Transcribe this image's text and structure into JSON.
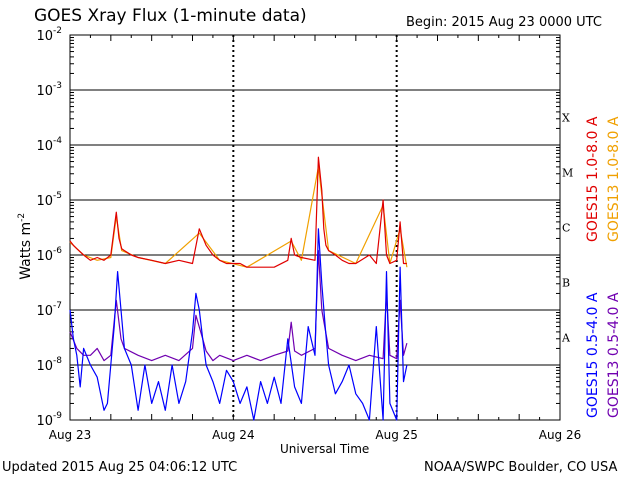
{
  "header": {
    "title": "GOES Xray Flux (1-minute data)",
    "begin": "Begin:  2015 Aug 23 0000 UTC"
  },
  "footer": {
    "updated": "Updated 2015 Aug 25 04:06:12 UTC",
    "credit": "NOAA/SWPC Boulder, CO USA"
  },
  "colors": {
    "goes15_long": "#e00000",
    "goes13_long": "#f0a000",
    "goes15_short": "#0000ff",
    "goes13_short": "#7000b0"
  },
  "chart_data": {
    "type": "line",
    "title": "GOES Xray Flux (1-minute data)",
    "xlabel": "Universal Time",
    "ylabel": "Watts m",
    "ylabel_sup": "-2",
    "yscale": "log",
    "ylim": [
      1e-09,
      0.01
    ],
    "xlim": [
      0,
      72
    ],
    "x_unit": "hours since 2015 Aug 23 0000 UTC",
    "x_ticks": [
      {
        "x": 0,
        "label": "Aug 23"
      },
      {
        "x": 24,
        "label": "Aug 24"
      },
      {
        "x": 48,
        "label": "Aug 25"
      },
      {
        "x": 72,
        "label": "Aug 26"
      }
    ],
    "y_ticks": [
      {
        "exp": -9,
        "label": "10"
      },
      {
        "exp": -8,
        "label": "10"
      },
      {
        "exp": -7,
        "label": "10"
      },
      {
        "exp": -6,
        "label": "10"
      },
      {
        "exp": -5,
        "label": "10"
      },
      {
        "exp": -4,
        "label": "10"
      },
      {
        "exp": -3,
        "label": "10"
      },
      {
        "exp": -2,
        "label": "10"
      }
    ],
    "flare_classes": [
      {
        "label": "A",
        "exp": -7.5
      },
      {
        "label": "B",
        "exp": -6.5
      },
      {
        "label": "C",
        "exp": -5.5
      },
      {
        "label": "M",
        "exp": -4.5
      },
      {
        "label": "X",
        "exp": -3.5
      }
    ],
    "grid": true,
    "legend_position": "right",
    "series": [
      {
        "name": "GOES15 1.0-8.0 A",
        "color_key": "goes15_long",
        "x": [
          0,
          0.5,
          1,
          2,
          3,
          4,
          5,
          6,
          6.8,
          7.2,
          7.6,
          8,
          9,
          10,
          12,
          14,
          16,
          18,
          19,
          20,
          21,
          22,
          23,
          24,
          25,
          26,
          28,
          30,
          32,
          32.5,
          33,
          34,
          36,
          36.5,
          37,
          37.3,
          37.6,
          38,
          39,
          40,
          41,
          42,
          44,
          45,
          46,
          46.5,
          47,
          48,
          48.5,
          49,
          49.5
        ],
        "y": [
          1.8e-06,
          1.5e-06,
          1.3e-06,
          1e-06,
          8e-07,
          9e-07,
          8e-07,
          1e-06,
          6e-06,
          2e-06,
          1.3e-06,
          1.2e-06,
          1e-06,
          9e-07,
          8e-07,
          7e-07,
          8e-07,
          7e-07,
          3e-06,
          1.5e-06,
          1e-06,
          8e-07,
          7e-07,
          7e-07,
          7e-07,
          6e-07,
          6e-07,
          6e-07,
          8e-07,
          2e-06,
          1e-06,
          9e-07,
          8e-07,
          6e-05,
          1.5e-05,
          3e-06,
          1.5e-06,
          1.2e-06,
          1e-06,
          8e-07,
          7e-07,
          7e-07,
          1e-06,
          7e-07,
          1e-05,
          1e-06,
          7e-07,
          8e-07,
          4e-06,
          7e-07,
          7e-07
        ]
      },
      {
        "name": "GOES13 1.0-8.0 A",
        "color_key": "goes13_long",
        "x": [
          0,
          2,
          4,
          6,
          6.8,
          7.6,
          10,
          14,
          19,
          22,
          26,
          32.5,
          34,
          36.5,
          38,
          42,
          46,
          47,
          48.5,
          49.5
        ],
        "y": [
          1.7e-06,
          1e-06,
          8e-07,
          9e-07,
          5e-06,
          1.2e-06,
          9e-07,
          7e-07,
          2.5e-06,
          8e-07,
          6e-07,
          1.8e-06,
          8e-07,
          4e-05,
          1.2e-06,
          7e-07,
          8e-06,
          7e-07,
          3e-06,
          6e-07
        ]
      },
      {
        "name": "GOES15 0.5-4.0 A",
        "color_key": "goes15_short",
        "x": [
          0,
          0.5,
          1,
          1.5,
          2,
          3,
          4,
          5,
          5.5,
          6,
          6.5,
          7,
          7.5,
          8,
          9,
          10,
          11,
          12,
          13,
          14,
          15,
          16,
          17,
          18,
          18.5,
          19,
          19.5,
          20,
          21,
          22,
          23,
          24,
          25,
          26,
          27,
          28,
          29,
          30,
          31,
          32,
          33,
          34,
          35,
          36,
          36.5,
          37,
          37.5,
          38,
          39,
          40,
          41,
          42,
          43,
          44,
          45,
          46,
          46.5,
          47,
          48,
          48.5,
          49,
          49.5
        ],
        "y": [
          1e-07,
          3e-08,
          1.5e-08,
          4e-09,
          2e-08,
          1e-08,
          6e-09,
          1.5e-09,
          2e-09,
          1e-08,
          5e-08,
          5e-07,
          1e-07,
          2e-08,
          1e-08,
          1.5e-09,
          1e-08,
          2e-09,
          5e-09,
          1.5e-09,
          1e-08,
          2e-09,
          5e-09,
          4e-08,
          2e-07,
          1e-07,
          3e-08,
          1e-08,
          5e-09,
          2e-09,
          8e-09,
          5e-09,
          2e-09,
          4e-09,
          1e-09,
          5e-09,
          2e-09,
          6e-09,
          2e-09,
          3e-08,
          4e-09,
          2e-09,
          5e-08,
          1.5e-08,
          3e-06,
          3e-07,
          5e-08,
          1e-08,
          3e-09,
          5e-09,
          1e-08,
          3e-09,
          2e-09,
          1e-09,
          5e-08,
          1e-09,
          5e-07,
          2e-09,
          1e-09,
          6e-07,
          5e-09,
          1e-08
        ]
      },
      {
        "name": "GOES13 0.5-4.0 A",
        "color_key": "goes13_short",
        "x": [
          0,
          1,
          2,
          3,
          4,
          5,
          6,
          6.8,
          7.5,
          8,
          10,
          12,
          14,
          16,
          18,
          18.5,
          19.5,
          20,
          21,
          22,
          24,
          26,
          28,
          30,
          32,
          32.5,
          33,
          34,
          36,
          36.5,
          37,
          38,
          40,
          42,
          44,
          46,
          46.5,
          47,
          48,
          48.5,
          49,
          49.5
        ],
        "y": [
          4e-08,
          2e-08,
          1.5e-08,
          1.5e-08,
          2e-08,
          1.2e-08,
          1.5e-08,
          1.5e-07,
          3e-08,
          2e-08,
          1.5e-08,
          1.2e-08,
          1.5e-08,
          1.2e-08,
          2e-08,
          8e-08,
          3e-08,
          1.8e-08,
          1.2e-08,
          1.5e-08,
          1.2e-08,
          1.5e-08,
          1.2e-08,
          1.5e-08,
          1.8e-08,
          6e-08,
          1.8e-08,
          1.5e-08,
          2e-08,
          1.2e-06,
          1e-07,
          2e-08,
          1.5e-08,
          1.2e-08,
          1.5e-08,
          1.3e-08,
          2e-07,
          1.5e-08,
          1.3e-08,
          1.5e-07,
          1.5e-08,
          2.5e-08
        ]
      }
    ]
  }
}
